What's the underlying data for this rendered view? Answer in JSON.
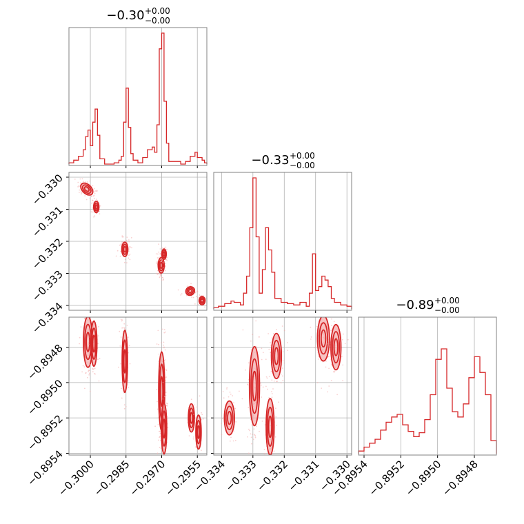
{
  "colors": {
    "accent": "#d62728",
    "fill": "#f4a9aa",
    "grid": "#b0b0b0",
    "frame": "#808080"
  },
  "chart_data": [
    {
      "panel": "hist-0",
      "type": "histogram",
      "title": {
        "base": "−0.30",
        "sup": "+0.00",
        "sub": "−0.00"
      },
      "xlim": [
        -0.3009,
        -0.2951
      ],
      "x_ticks": [
        -0.3,
        -0.2985,
        -0.297,
        -0.2955
      ],
      "bins": [
        [
          -0.3009,
          0.01
        ],
        [
          -0.3007,
          0.03
        ],
        [
          -0.3005,
          0.06
        ],
        [
          -0.3003,
          0.11
        ],
        [
          -0.3002,
          0.21
        ],
        [
          -0.3001,
          0.26
        ],
        [
          -0.3,
          0.14
        ],
        [
          -0.2999,
          0.32
        ],
        [
          -0.2998,
          0.42
        ],
        [
          -0.2997,
          0.22
        ],
        [
          -0.2996,
          0.04
        ],
        [
          -0.2994,
          0.0
        ],
        [
          -0.299,
          0.01
        ],
        [
          -0.2988,
          0.03
        ],
        [
          -0.2987,
          0.06
        ],
        [
          -0.2986,
          0.32
        ],
        [
          -0.2985,
          0.58
        ],
        [
          -0.2984,
          0.28
        ],
        [
          -0.2983,
          0.08
        ],
        [
          -0.2982,
          0.03
        ],
        [
          -0.298,
          0.01
        ],
        [
          -0.2978,
          0.05
        ],
        [
          -0.2976,
          0.11
        ],
        [
          -0.2974,
          0.13
        ],
        [
          -0.2973,
          0.09
        ],
        [
          -0.2972,
          0.3
        ],
        [
          -0.2971,
          0.88
        ],
        [
          -0.297,
          1.0
        ],
        [
          -0.2969,
          0.48
        ],
        [
          -0.2968,
          0.16
        ],
        [
          -0.2967,
          0.02
        ],
        [
          -0.2962,
          0.0
        ],
        [
          -0.296,
          0.02
        ],
        [
          -0.2958,
          0.06
        ],
        [
          -0.2956,
          0.09
        ],
        [
          -0.2955,
          0.05
        ],
        [
          -0.2953,
          0.03
        ],
        [
          -0.2952,
          0.01
        ]
      ]
    },
    {
      "panel": "hist-1",
      "type": "histogram",
      "title": {
        "base": "−0.33",
        "sup": "+0.00",
        "sub": "−0.00"
      },
      "xlim": [
        -0.33425,
        -0.32985
      ],
      "x_ticks": [
        -0.334,
        -0.333,
        -0.332,
        -0.331,
        -0.33
      ],
      "bins": [
        [
          -0.33425,
          0.01
        ],
        [
          -0.3341,
          0.02
        ],
        [
          -0.3339,
          0.04
        ],
        [
          -0.3337,
          0.06
        ],
        [
          -0.3336,
          0.05
        ],
        [
          -0.3334,
          0.03
        ],
        [
          -0.3333,
          0.12
        ],
        [
          -0.3332,
          0.25
        ],
        [
          -0.3331,
          0.62
        ],
        [
          -0.333,
          1.0
        ],
        [
          -0.3329,
          0.55
        ],
        [
          -0.3328,
          0.12
        ],
        [
          -0.3327,
          0.3
        ],
        [
          -0.3326,
          0.62
        ],
        [
          -0.3325,
          0.45
        ],
        [
          -0.3324,
          0.28
        ],
        [
          -0.3323,
          0.08
        ],
        [
          -0.3321,
          0.05
        ],
        [
          -0.3319,
          0.04
        ],
        [
          -0.3317,
          0.03
        ],
        [
          -0.3315,
          0.05
        ],
        [
          -0.3313,
          0.02
        ],
        [
          -0.3312,
          0.12
        ],
        [
          -0.3311,
          0.42
        ],
        [
          -0.331,
          0.14
        ],
        [
          -0.3309,
          0.17
        ],
        [
          -0.3308,
          0.25
        ],
        [
          -0.3307,
          0.22
        ],
        [
          -0.3306,
          0.17
        ],
        [
          -0.3305,
          0.08
        ],
        [
          -0.3304,
          0.05
        ],
        [
          -0.3302,
          0.03
        ],
        [
          -0.33,
          0.02
        ]
      ]
    },
    {
      "panel": "hist-2",
      "type": "histogram",
      "title": {
        "base": "−0.89",
        "sup": "+0.00",
        "sub": "−0.00"
      },
      "xlim": [
        -0.89543,
        -0.89468
      ],
      "x_ticks": [
        -0.8954,
        -0.8952,
        -0.895,
        -0.8948
      ],
      "bins": [
        [
          -0.89543,
          0.02
        ],
        [
          -0.8954,
          0.05
        ],
        [
          -0.89537,
          0.08
        ],
        [
          -0.89534,
          0.11
        ],
        [
          -0.89531,
          0.18
        ],
        [
          -0.89528,
          0.24
        ],
        [
          -0.89525,
          0.28
        ],
        [
          -0.89522,
          0.3
        ],
        [
          -0.89519,
          0.22
        ],
        [
          -0.89516,
          0.17
        ],
        [
          -0.89513,
          0.13
        ],
        [
          -0.8951,
          0.16
        ],
        [
          -0.89507,
          0.26
        ],
        [
          -0.89504,
          0.45
        ],
        [
          -0.89501,
          0.72
        ],
        [
          -0.89498,
          0.8
        ],
        [
          -0.89495,
          0.5
        ],
        [
          -0.89492,
          0.32
        ],
        [
          -0.89489,
          0.28
        ],
        [
          -0.89486,
          0.38
        ],
        [
          -0.89483,
          0.58
        ],
        [
          -0.8948,
          0.74
        ],
        [
          -0.89477,
          0.62
        ],
        [
          -0.89474,
          0.45
        ],
        [
          -0.89471,
          0.1
        ]
      ]
    },
    {
      "panel": "scatter-1-0",
      "type": "scatter",
      "xlim": [
        -0.3009,
        -0.2951
      ],
      "ylim": [
        -0.33415,
        -0.32985
      ],
      "x_ticks": [
        -0.3,
        -0.2985,
        -0.297,
        -0.2955
      ],
      "y_ticks": [
        -0.33,
        -0.331,
        -0.332,
        -0.333,
        -0.334
      ],
      "clusters": [
        {
          "x": -0.30015,
          "y": -0.33037,
          "sx": 0.00012,
          "sy": 0.00014,
          "rot": -0.8,
          "n": 90
        },
        {
          "x": -0.29975,
          "y": -0.33093,
          "sx": 7e-05,
          "sy": 0.00011,
          "rot": 0.0,
          "n": 70
        },
        {
          "x": -0.29855,
          "y": -0.33225,
          "sx": 8e-05,
          "sy": 0.00014,
          "rot": 0.0,
          "n": 90
        },
        {
          "x": -0.29702,
          "y": -0.33275,
          "sx": 8e-05,
          "sy": 0.00015,
          "rot": 0.0,
          "n": 100
        },
        {
          "x": -0.2969,
          "y": -0.3324,
          "sx": 6e-05,
          "sy": 0.0001,
          "rot": 0.0,
          "n": 60
        },
        {
          "x": -0.2958,
          "y": -0.33355,
          "sx": 0.00012,
          "sy": 8e-05,
          "rot": -0.7,
          "n": 40
        },
        {
          "x": -0.2953,
          "y": -0.33385,
          "sx": 8e-05,
          "sy": 8e-05,
          "rot": 0.0,
          "n": 30
        }
      ]
    },
    {
      "panel": "scatter-2-0",
      "type": "scatter",
      "xlim": [
        -0.3009,
        -0.2951
      ],
      "ylim": [
        -0.89541,
        -0.89463
      ],
      "x_ticks": [
        -0.3,
        -0.2985,
        -0.297,
        -0.2955
      ],
      "y_ticks": [
        -0.8948,
        -0.895,
        -0.8952,
        -0.8954
      ],
      "clusters": [
        {
          "x": -0.3001,
          "y": -0.89477,
          "sx": 0.00012,
          "sy": 9e-05,
          "rot": 0.0,
          "n": 90
        },
        {
          "x": -0.29985,
          "y": -0.89478,
          "sx": 8e-05,
          "sy": 8e-05,
          "rot": 0.0,
          "n": 60
        },
        {
          "x": -0.29855,
          "y": -0.89488,
          "sx": 7e-05,
          "sy": 0.00011,
          "rot": 0.0,
          "n": 80
        },
        {
          "x": -0.297,
          "y": -0.89505,
          "sx": 8e-05,
          "sy": 0.00014,
          "rot": 0.0,
          "n": 110
        },
        {
          "x": -0.2969,
          "y": -0.89526,
          "sx": 7e-05,
          "sy": 9e-05,
          "rot": 0.0,
          "n": 60
        },
        {
          "x": -0.29575,
          "y": -0.8952,
          "sx": 8e-05,
          "sy": 5e-05,
          "rot": 0.0,
          "n": 30
        },
        {
          "x": -0.29545,
          "y": -0.89528,
          "sx": 7e-05,
          "sy": 6e-05,
          "rot": 0.0,
          "n": 20
        }
      ]
    },
    {
      "panel": "scatter-2-1",
      "type": "scatter",
      "xlim": [
        -0.33425,
        -0.32985
      ],
      "ylim": [
        -0.89541,
        -0.89463
      ],
      "x_ticks": [
        -0.334,
        -0.333,
        -0.332,
        -0.331,
        -0.33
      ],
      "y_ticks": [
        -0.8948,
        -0.895,
        -0.8952,
        -0.8954
      ],
      "clusters": [
        {
          "x": -0.33375,
          "y": -0.8952,
          "sx": 0.0001,
          "sy": 6e-05,
          "rot": 0.0,
          "n": 40
        },
        {
          "x": -0.33295,
          "y": -0.89502,
          "sx": 0.0001,
          "sy": 0.00014,
          "rot": 0.0,
          "n": 110
        },
        {
          "x": -0.33245,
          "y": -0.89525,
          "sx": 8e-05,
          "sy": 0.0001,
          "rot": 0.0,
          "n": 70
        },
        {
          "x": -0.33225,
          "y": -0.89485,
          "sx": 0.0001,
          "sy": 8e-05,
          "rot": 0.0,
          "n": 60
        },
        {
          "x": -0.33075,
          "y": -0.89475,
          "sx": 0.00012,
          "sy": 8e-05,
          "rot": 0.0,
          "n": 90
        },
        {
          "x": -0.33035,
          "y": -0.8948,
          "sx": 0.0001,
          "sy": 8e-05,
          "rot": 0.0,
          "n": 60
        }
      ]
    }
  ]
}
